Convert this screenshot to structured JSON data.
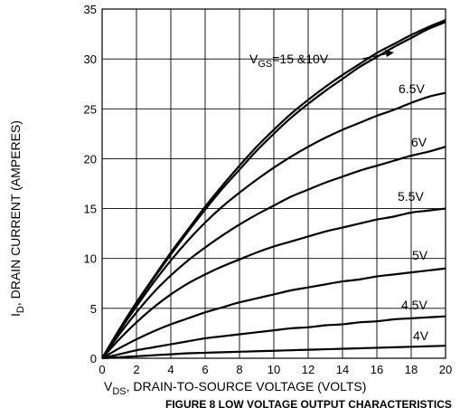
{
  "chart_data": {
    "type": "line",
    "title": "",
    "caption": "FIGURE 8 LOW VOLTAGE OUTPUT CHARACTERISTICS",
    "xlabel": "V_DS, DRAIN-TO-SOURCE VOLTAGE (VOLTS)",
    "xlabel_parts": {
      "main": "V",
      "sub": "DS",
      "rest": ", DRAIN-TO-SOURCE VOLTAGE (VOLTS)"
    },
    "ylabel": "I_D, DRAIN CURRENT (AMPERES)",
    "ylabel_parts": {
      "main": "I",
      "sub": "D",
      "rest": ", DRAIN CURRENT (AMPERES)"
    },
    "xlim": [
      0,
      20
    ],
    "ylim": [
      0,
      35
    ],
    "xticks": [
      "0",
      "2",
      "4",
      "6",
      "8",
      "10",
      "12",
      "14",
      "16",
      "18",
      "20"
    ],
    "yticks": [
      "0",
      "5",
      "10",
      "15",
      "20",
      "25",
      "30",
      "35"
    ],
    "grid": true,
    "x": [
      0,
      1,
      2,
      3,
      4,
      5,
      6,
      7,
      8,
      9,
      10,
      11,
      12,
      13,
      14,
      15,
      16,
      17,
      18,
      19,
      20
    ],
    "series": [
      {
        "name": "V_GS = 15 V",
        "values": [
          0,
          2.9,
          5.6,
          8.1,
          10.6,
          12.9,
          15.2,
          17.3,
          19.3,
          21.2,
          22.9,
          24.5,
          25.9,
          27.2,
          28.4,
          29.5,
          30.6,
          31.5,
          32.4,
          33.2,
          33.9
        ]
      },
      {
        "name": "V_GS = 10 V",
        "values": [
          0,
          2.8,
          5.5,
          8.0,
          10.4,
          12.7,
          14.9,
          17.0,
          18.9,
          20.8,
          22.5,
          24.1,
          25.5,
          26.8,
          28.0,
          29.2,
          30.2,
          31.2,
          32.1,
          33.0,
          33.7
        ]
      },
      {
        "name": "6.5V",
        "values": [
          0,
          2.7,
          5.2,
          7.6,
          9.8,
          11.8,
          13.6,
          15.2,
          16.6,
          17.9,
          19.1,
          20.2,
          21.2,
          22.1,
          22.9,
          23.6,
          24.3,
          24.9,
          25.6,
          26.2,
          26.6
        ]
      },
      {
        "name": "6V",
        "values": [
          0,
          2.4,
          4.6,
          6.6,
          8.3,
          9.8,
          11.1,
          12.3,
          13.4,
          14.4,
          15.3,
          16.2,
          16.9,
          17.6,
          18.2,
          18.8,
          19.3,
          19.8,
          20.3,
          20.7,
          21.2
        ]
      },
      {
        "name": "5.5V",
        "values": [
          0,
          1.9,
          3.6,
          5.1,
          6.4,
          7.5,
          8.4,
          9.2,
          9.9,
          10.6,
          11.2,
          11.7,
          12.2,
          12.7,
          13.1,
          13.5,
          13.9,
          14.2,
          14.6,
          14.8,
          15.0
        ]
      },
      {
        "name": "5V",
        "values": [
          0,
          1.0,
          1.9,
          2.7,
          3.4,
          4.0,
          4.6,
          5.1,
          5.6,
          6.0,
          6.4,
          6.8,
          7.1,
          7.4,
          7.7,
          7.9,
          8.2,
          8.4,
          8.6,
          8.8,
          9.0
        ]
      },
      {
        "name": "4.5V",
        "values": [
          0,
          0.4,
          0.8,
          1.1,
          1.4,
          1.7,
          2.0,
          2.2,
          2.4,
          2.6,
          2.8,
          3.0,
          3.1,
          3.3,
          3.4,
          3.6,
          3.7,
          3.9,
          4.0,
          4.1,
          4.2
        ]
      },
      {
        "name": "4V",
        "values": [
          0,
          0.1,
          0.2,
          0.3,
          0.4,
          0.5,
          0.55,
          0.6,
          0.65,
          0.7,
          0.75,
          0.8,
          0.85,
          0.9,
          0.95,
          1.0,
          1.05,
          1.1,
          1.15,
          1.2,
          1.25
        ]
      }
    ],
    "annotations": {
      "vgs_top": {
        "main": "V",
        "sub": "GS",
        "rest": "=15 &10V"
      },
      "labels": [
        "6.5V",
        "6V",
        "5.5V",
        "5V",
        "4.5V",
        "4V"
      ]
    }
  }
}
